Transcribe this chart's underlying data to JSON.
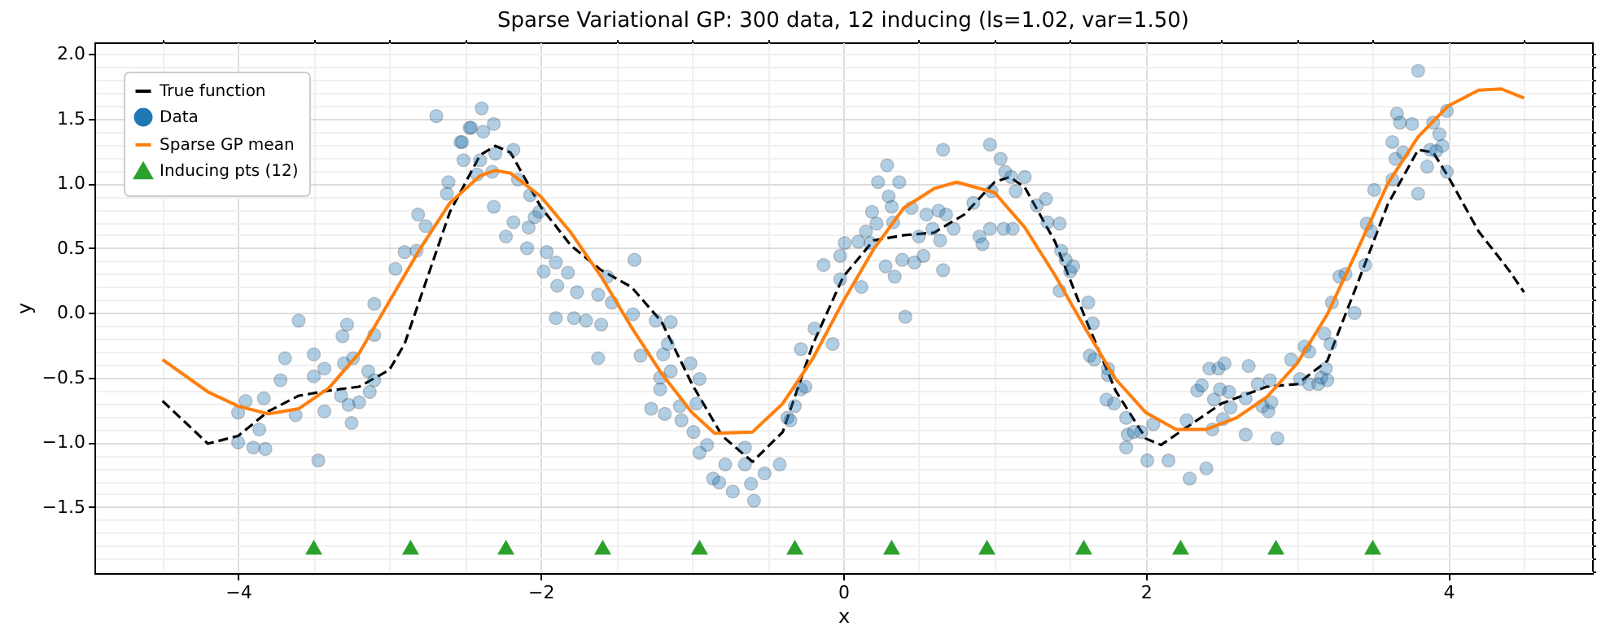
{
  "chart_data": {
    "type": "line",
    "title": "Sparse Variational GP: 300 data, 12 inducing (ls=1.02, var=1.50)",
    "xlabel": "x",
    "ylabel": "y",
    "xlim": [
      -4.95,
      4.95
    ],
    "ylim": [
      -2.01,
      2.09
    ],
    "xticks": [
      -4,
      -2,
      0,
      2,
      4,
      {
        "value": -4.5,
        "label": null
      },
      {
        "value": -3.5,
        "label": null
      },
      {
        "value": -3,
        "label": null
      },
      {
        "value": -2.5,
        "label": null
      },
      {
        "value": -1.5,
        "label": null
      },
      {
        "value": -1,
        "label": null
      },
      {
        "value": -0.5,
        "label": null
      },
      {
        "value": 0.5,
        "label": null
      },
      {
        "value": 1,
        "label": null
      },
      {
        "value": 1.5,
        "label": null
      },
      {
        "value": 2.5,
        "label": null
      },
      {
        "value": 3,
        "label": null
      },
      {
        "value": 3.5,
        "label": null
      },
      {
        "value": 4.5,
        "label": null
      }
    ],
    "yticks": [
      {
        "value": -1.5,
        "label": "−1.5"
      },
      {
        "value": -1.0,
        "label": "−1.0"
      },
      -0.5,
      {
        "value": 0.0,
        "label": "0.0"
      },
      0.5,
      {
        "value": 1.0,
        "label": "1.0"
      },
      1.5,
      {
        "value": 2.0,
        "label": "2.0"
      },
      {
        "value": -2.0,
        "label": null
      },
      {
        "value": -1.9,
        "label": null
      },
      {
        "value": -1.8,
        "label": null
      },
      {
        "value": -1.7,
        "label": null
      },
      {
        "value": -1.6,
        "label": null
      },
      {
        "value": -1.4,
        "label": null
      },
      {
        "value": -1.3,
        "label": null
      },
      {
        "value": -1.2,
        "label": null
      },
      {
        "value": -1.1,
        "label": null
      },
      {
        "value": -0.9,
        "label": null
      },
      {
        "value": -0.8,
        "label": null
      },
      {
        "value": -0.7,
        "label": null
      },
      {
        "value": -0.6,
        "label": null
      },
      {
        "value": -0.4,
        "label": null
      },
      {
        "value": -0.3,
        "label": null
      },
      {
        "value": -0.2,
        "label": null
      },
      {
        "value": -0.1,
        "label": null
      },
      {
        "value": 0.1,
        "label": null
      },
      {
        "value": 0.2,
        "label": null
      },
      {
        "value": 0.3,
        "label": null
      },
      {
        "value": 0.4,
        "label": null
      },
      {
        "value": 0.6,
        "label": null
      },
      {
        "value": 0.7,
        "label": null
      },
      {
        "value": 0.8,
        "label": null
      },
      {
        "value": 0.9,
        "label": null
      },
      {
        "value": 1.1,
        "label": null
      },
      {
        "value": 1.2,
        "label": null
      },
      {
        "value": 1.3,
        "label": null
      },
      {
        "value": 1.4,
        "label": null
      },
      {
        "value": 1.6,
        "label": null
      },
      {
        "value": 1.7,
        "label": null
      },
      {
        "value": 1.8,
        "label": null
      },
      {
        "value": 1.9,
        "label": null
      },
      {
        "value": 2.0,
        "label": null
      }
    ],
    "grid": true,
    "legend": "top left",
    "series": [
      {
        "name": "True function",
        "color": "#000000",
        "line_style": "dashed",
        "marker": "none",
        "x": [
          -4.5,
          -4.2,
          -4.0,
          -3.8,
          -3.6,
          -3.4,
          -3.2,
          -3.0,
          -2.9,
          -2.8,
          -2.6,
          -2.4,
          -2.3,
          -2.2,
          -2.0,
          -1.8,
          -1.6,
          -1.4,
          -1.2,
          -1.0,
          -0.8,
          -0.6,
          -0.4,
          -0.2,
          0.0,
          0.2,
          0.4,
          0.6,
          0.8,
          1.0,
          1.1,
          1.2,
          1.4,
          1.6,
          1.8,
          2.0,
          2.1,
          2.3,
          2.5,
          2.8,
          3.0,
          3.2,
          3.4,
          3.6,
          3.8,
          3.9,
          4.0,
          4.2,
          4.4,
          4.5
        ],
        "values": [
          -0.68,
          -1.01,
          -0.95,
          -0.76,
          -0.64,
          -0.6,
          -0.57,
          -0.44,
          -0.24,
          0.1,
          0.78,
          1.22,
          1.29,
          1.24,
          0.82,
          0.52,
          0.33,
          0.2,
          -0.07,
          -0.55,
          -0.95,
          -1.15,
          -0.92,
          -0.24,
          0.28,
          0.56,
          0.6,
          0.62,
          0.76,
          1.01,
          1.05,
          0.97,
          0.55,
          -0.04,
          -0.6,
          -0.97,
          -1.02,
          -0.86,
          -0.7,
          -0.57,
          -0.55,
          -0.37,
          0.23,
          0.84,
          1.26,
          1.24,
          1.05,
          0.63,
          0.33,
          0.16
        ]
      },
      {
        "name": "Data",
        "type": "scatter",
        "color": "#1f77b4",
        "marker": "circle",
        "x": [
          -4.0,
          -3.95,
          -4.0,
          -3.9,
          -3.82,
          -3.86,
          -3.83,
          -3.72,
          -3.69,
          -3.6,
          -3.62,
          -3.5,
          -3.5,
          -3.43,
          -3.47,
          -3.43,
          -3.32,
          -3.31,
          -3.28,
          -3.3,
          -3.24,
          -3.27,
          -3.25,
          -3.2,
          -3.13,
          -3.14,
          -3.1,
          -3.1,
          -3.1,
          -2.96,
          -2.9,
          -2.82,
          -2.81,
          -2.76,
          -2.69,
          -2.61,
          -2.62,
          -2.53,
          -2.51,
          -2.47,
          -2.52,
          -2.39,
          -2.46,
          -2.38,
          -2.31,
          -2.4,
          -2.42,
          -2.3,
          -2.32,
          -2.18,
          -2.31,
          -2.23,
          -2.18,
          -2.15,
          -2.07,
          -2.08,
          -2.09,
          -2.01,
          -2.04,
          -1.96,
          -1.98,
          -1.9,
          -1.89,
          -1.9,
          -1.82,
          -1.78,
          -1.76,
          -1.7,
          -1.62,
          -1.56,
          -1.53,
          -1.62,
          -1.6,
          -1.39,
          -1.38,
          -1.34,
          -1.24,
          -1.14,
          -1.19,
          -1.16,
          -1.14,
          -1.21,
          -1.21,
          -1.27,
          -1.18,
          -1.08,
          -1.01,
          -0.95,
          -0.97,
          -1.07,
          -0.99,
          -0.95,
          -0.9,
          -0.86,
          -0.82,
          -0.78,
          -0.73,
          -0.65,
          -0.65,
          -0.61,
          -0.59,
          -0.52,
          -0.42,
          -0.37,
          -0.35,
          -0.32,
          -0.28,
          -0.25,
          -0.28,
          -0.19,
          -0.13,
          -0.07,
          -0.02,
          -0.02,
          0.01,
          0.1,
          0.12,
          0.15,
          0.18,
          0.19,
          0.22,
          0.23,
          0.29,
          0.3,
          0.32,
          0.33,
          0.37,
          0.28,
          0.34,
          0.39,
          0.41,
          0.45,
          0.47,
          0.5,
          0.53,
          0.55,
          0.59,
          0.63,
          0.64,
          0.66,
          0.66,
          0.68,
          0.73,
          0.86,
          0.9,
          0.92,
          0.97,
          0.97,
          0.98,
          1.04,
          1.06,
          1.12,
          1.07,
          1.11,
          1.14,
          1.2,
          1.28,
          1.34,
          1.35,
          1.43,
          1.44,
          1.47,
          1.5,
          1.52,
          1.43,
          1.62,
          1.65,
          1.63,
          1.66,
          1.75,
          1.75,
          1.74,
          1.79,
          1.87,
          1.88,
          1.92,
          1.97,
          1.87,
          2.01,
          2.05,
          2.15,
          2.27,
          2.29,
          2.34,
          2.4,
          2.44,
          2.51,
          2.66,
          2.87,
          2.37,
          2.42,
          2.48,
          2.52,
          2.49,
          2.55,
          2.56,
          2.45,
          2.66,
          2.68,
          2.74,
          2.77,
          2.81,
          2.83,
          2.82,
          2.96,
          3.02,
          3.05,
          3.08,
          3.08,
          3.14,
          3.16,
          3.19,
          3.2,
          3.18,
          3.22,
          3.23,
          3.28,
          3.32,
          3.38,
          3.45,
          3.46,
          3.49,
          3.51,
          3.63,
          3.63,
          3.65,
          3.66,
          3.68,
          3.76,
          3.7,
          3.8,
          3.8,
          3.86,
          3.88,
          3.9,
          3.94,
          3.96,
          3.99,
          3.99,
          3.92
        ],
        "values": [
          -0.77,
          -0.68,
          -1.0,
          -1.04,
          -1.05,
          -0.9,
          -0.66,
          -0.52,
          -0.35,
          -0.06,
          -0.79,
          -0.32,
          -0.49,
          -0.43,
          -1.14,
          -0.76,
          -0.64,
          -0.18,
          -0.09,
          -0.39,
          -0.35,
          -0.71,
          -0.85,
          -0.69,
          -0.61,
          -0.45,
          -0.52,
          -0.17,
          0.07,
          0.34,
          0.47,
          0.48,
          0.76,
          0.67,
          1.52,
          1.01,
          0.92,
          1.32,
          1.18,
          1.43,
          1.32,
          1.58,
          1.43,
          1.4,
          1.46,
          1.18,
          1.07,
          1.23,
          1.09,
          1.26,
          0.82,
          0.59,
          0.7,
          1.03,
          0.91,
          0.66,
          0.5,
          0.78,
          0.74,
          0.47,
          0.32,
          0.39,
          0.21,
          -0.04,
          0.31,
          -0.04,
          0.16,
          -0.06,
          0.14,
          0.28,
          0.08,
          -0.35,
          -0.09,
          -0.01,
          0.41,
          -0.33,
          -0.06,
          -0.07,
          -0.32,
          -0.24,
          -0.45,
          -0.5,
          -0.59,
          -0.74,
          -0.78,
          -0.72,
          -0.39,
          -0.51,
          -0.7,
          -0.83,
          -0.92,
          -1.08,
          -1.02,
          -1.28,
          -1.31,
          -1.17,
          -1.38,
          -1.04,
          -1.17,
          -1.32,
          -1.45,
          -1.24,
          -1.17,
          -0.81,
          -0.83,
          -0.72,
          -0.59,
          -0.57,
          -0.28,
          -0.12,
          0.37,
          -0.24,
          0.26,
          0.44,
          0.54,
          0.55,
          0.2,
          0.63,
          0.54,
          0.78,
          0.69,
          1.01,
          1.14,
          0.9,
          0.82,
          0.7,
          1.01,
          0.36,
          0.28,
          0.41,
          -0.03,
          0.81,
          0.39,
          0.59,
          0.44,
          0.76,
          0.65,
          0.79,
          0.56,
          1.26,
          0.33,
          0.76,
          0.65,
          0.85,
          0.59,
          0.53,
          1.3,
          0.65,
          0.94,
          1.19,
          0.65,
          0.65,
          1.09,
          1.05,
          0.94,
          1.05,
          0.83,
          0.88,
          0.7,
          0.69,
          0.48,
          0.41,
          0.32,
          0.36,
          0.17,
          0.08,
          -0.08,
          -0.33,
          -0.36,
          -0.43,
          -0.48,
          -0.67,
          -0.7,
          -0.81,
          -0.94,
          -0.92,
          -0.92,
          -1.04,
          -1.14,
          -0.86,
          -1.14,
          -0.83,
          -1.28,
          -0.6,
          -1.2,
          -0.9,
          -0.82,
          -0.94,
          -0.97,
          -0.56,
          -0.43,
          -0.43,
          -0.39,
          -0.59,
          -0.61,
          -0.73,
          -0.67,
          -0.66,
          -0.41,
          -0.55,
          -0.72,
          -0.76,
          -0.69,
          -0.52,
          -0.36,
          -0.51,
          -0.26,
          -0.3,
          -0.55,
          -0.55,
          -0.5,
          -0.43,
          -0.52,
          -0.16,
          -0.24,
          0.08,
          0.28,
          0.3,
          0.0,
          0.37,
          0.69,
          0.63,
          0.95,
          1.03,
          1.32,
          1.19,
          1.54,
          1.47,
          1.46,
          1.24,
          1.87,
          0.92,
          1.13,
          1.26,
          1.47,
          1.38,
          1.29,
          1.56,
          1.09,
          1.25
        ]
      },
      {
        "name": "Sparse GP mean",
        "color": "#ff7f0e",
        "line_style": "solid",
        "marker": "none",
        "x": [
          -4.5,
          -4.2,
          -4.0,
          -3.8,
          -3.6,
          -3.4,
          -3.2,
          -3.0,
          -2.8,
          -2.6,
          -2.4,
          -2.3,
          -2.2,
          -2.0,
          -1.8,
          -1.6,
          -1.4,
          -1.2,
          -1.0,
          -0.85,
          -0.6,
          -0.4,
          -0.2,
          0.0,
          0.2,
          0.4,
          0.6,
          0.75,
          1.0,
          1.2,
          1.4,
          1.6,
          1.8,
          2.0,
          2.2,
          2.4,
          2.6,
          2.8,
          3.0,
          3.2,
          3.4,
          3.6,
          3.8,
          4.0,
          4.2,
          4.35,
          4.5
        ],
        "values": [
          -0.36,
          -0.61,
          -0.72,
          -0.78,
          -0.74,
          -0.58,
          -0.31,
          0.09,
          0.49,
          0.85,
          1.06,
          1.1,
          1.08,
          0.9,
          0.62,
          0.28,
          -0.11,
          -0.47,
          -0.77,
          -0.93,
          -0.92,
          -0.7,
          -0.35,
          0.09,
          0.49,
          0.81,
          0.96,
          1.01,
          0.93,
          0.66,
          0.29,
          -0.12,
          -0.51,
          -0.77,
          -0.9,
          -0.9,
          -0.81,
          -0.65,
          -0.39,
          -0.01,
          0.49,
          1.0,
          1.36,
          1.6,
          1.72,
          1.73,
          1.66
        ]
      },
      {
        "name": "Inducing pts (12)",
        "type": "scatter",
        "color": "#2ca02c",
        "marker": "triangle",
        "x": [
          -3.5,
          -2.86,
          -2.23,
          -1.59,
          -0.95,
          -0.32,
          0.32,
          0.95,
          1.59,
          2.23,
          2.86,
          3.5
        ],
        "values": [
          -1.81,
          -1.81,
          -1.81,
          -1.81,
          -1.81,
          -1.81,
          -1.81,
          -1.81,
          -1.81,
          -1.81,
          -1.81,
          -1.81
        ]
      }
    ]
  }
}
